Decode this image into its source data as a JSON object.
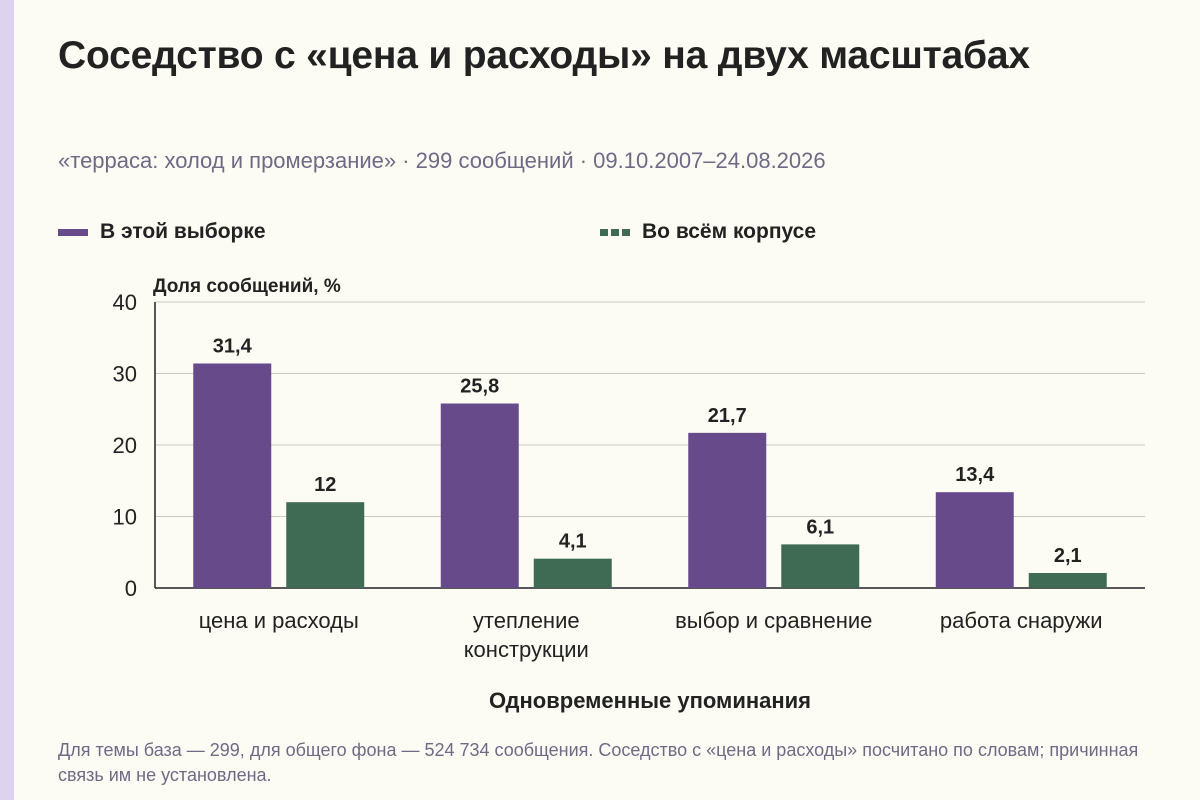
{
  "title": "Соседство с «цена и расходы» на двух масштабах",
  "subtitle": "«терраса: холод и промерзание» · 299 сообщений · 09.10.2007–24.08.2026",
  "footnote": "Для темы база — 299, для общего фона — 524 734 сообщения. Соседство с «цена и расходы» посчитано по словам; причинная связь им не установлена.",
  "colors": {
    "sample": "#664a8a",
    "corpus": "#3f6b55",
    "accent_strip": "#ddd3ee",
    "background": "#fdfcf4"
  },
  "legend": [
    {
      "label": "В этой выборке",
      "color": "#664a8a",
      "style": "solid"
    },
    {
      "label": "Во всём корпусе",
      "color": "#3f6b55",
      "style": "dashed"
    }
  ],
  "chart_data": {
    "type": "bar",
    "categories": [
      [
        "цена и расходы"
      ],
      [
        "утепление",
        "конструкции"
      ],
      [
        "выбор и сравнение"
      ],
      [
        "работа снаружи"
      ]
    ],
    "series": [
      {
        "name": "В этой выборке",
        "values": [
          31.4,
          25.8,
          21.7,
          13.4
        ],
        "labels": [
          "31,4",
          "25,8",
          "21,7",
          "13,4"
        ],
        "color": "#664a8a"
      },
      {
        "name": "Во всём корпусе",
        "values": [
          12,
          4.1,
          6.1,
          2.1
        ],
        "labels": [
          "12",
          "4,1",
          "6,1",
          "2,1"
        ],
        "color": "#3f6b55"
      }
    ],
    "ylabel": "Доля сообщений, %",
    "xlabel": "Одновременные упоминания",
    "ylim": [
      0,
      40
    ],
    "yticks": [
      0,
      10,
      20,
      30,
      40
    ],
    "grid": true,
    "legend_position": "top-left"
  }
}
